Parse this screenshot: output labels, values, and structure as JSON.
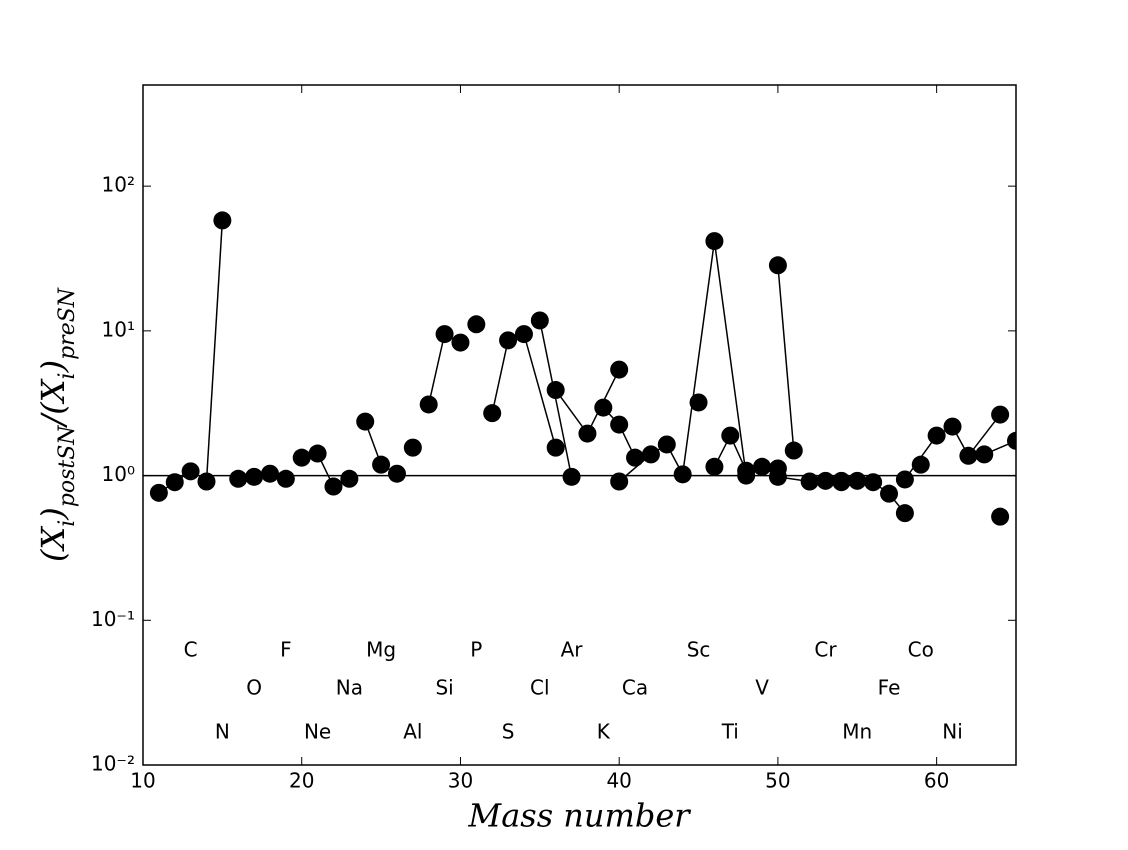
{
  "chart_data": {
    "type": "line",
    "log_y": true,
    "x_label": "Mass number",
    "y_label_parts": [
      "(X",
      "i",
      ")",
      "postSN",
      "/(X",
      "i",
      ")",
      "preSN"
    ],
    "xlim": [
      10,
      65
    ],
    "ylim": [
      0.01,
      500
    ],
    "xticks": [
      10,
      20,
      30,
      40,
      50,
      60
    ],
    "yticks": [
      {
        "value": 0.01,
        "label": "10⁻²"
      },
      {
        "value": 0.1,
        "label": "10⁻¹"
      },
      {
        "value": 1,
        "label": "10⁰"
      },
      {
        "value": 10,
        "label": "10¹"
      },
      {
        "value": 100,
        "label": "10²"
      }
    ],
    "reference_line": 1,
    "color": "#000000",
    "series": [
      {
        "name": "C",
        "label_x": 13,
        "label_y": 0.0615,
        "x": [
          11,
          12,
          13
        ],
        "values": [
          0.76,
          0.9,
          1.07
        ]
      },
      {
        "name": "N",
        "label_x": 15,
        "label_y": 0.0166,
        "x": [
          14,
          15
        ],
        "values": [
          0.91,
          58
        ]
      },
      {
        "name": "O",
        "label_x": 17,
        "label_y": 0.0336,
        "x": [
          16,
          17,
          18
        ],
        "values": [
          0.95,
          0.98,
          1.03
        ]
      },
      {
        "name": "F",
        "label_x": 19,
        "label_y": 0.0615,
        "x": [
          19
        ],
        "values": [
          0.95
        ]
      },
      {
        "name": "Ne",
        "label_x": 21,
        "label_y": 0.0166,
        "x": [
          20,
          21,
          22
        ],
        "values": [
          1.33,
          1.42,
          0.84
        ]
      },
      {
        "name": "Na",
        "label_x": 23,
        "label_y": 0.0336,
        "x": [
          23
        ],
        "values": [
          0.95
        ]
      },
      {
        "name": "Mg",
        "label_x": 25,
        "label_y": 0.0615,
        "x": [
          24,
          25,
          26
        ],
        "values": [
          2.36,
          1.19,
          1.03
        ]
      },
      {
        "name": "Al",
        "label_x": 27,
        "label_y": 0.0166,
        "x": [
          27
        ],
        "values": [
          1.56
        ]
      },
      {
        "name": "Si",
        "label_x": 29,
        "label_y": 0.0336,
        "x": [
          28,
          29,
          30
        ],
        "values": [
          3.1,
          9.5,
          8.3
        ]
      },
      {
        "name": "P",
        "label_x": 31,
        "label_y": 0.0615,
        "x": [
          31
        ],
        "values": [
          11.1
        ]
      },
      {
        "name": "S",
        "label_x": 33,
        "label_y": 0.0166,
        "x": [
          32,
          33,
          34,
          36
        ],
        "values": [
          2.7,
          8.6,
          9.5,
          1.56
        ]
      },
      {
        "name": "Cl",
        "label_x": 35,
        "label_y": 0.0336,
        "x": [
          35,
          37
        ],
        "values": [
          11.8,
          0.98
        ]
      },
      {
        "name": "Ar",
        "label_x": 37,
        "label_y": 0.0615,
        "x": [
          36,
          38,
          40
        ],
        "values": [
          3.9,
          1.95,
          5.4
        ]
      },
      {
        "name": "K",
        "label_x": 39,
        "label_y": 0.0166,
        "x": [
          39,
          40,
          41
        ],
        "values": [
          2.95,
          2.25,
          1.33
        ]
      },
      {
        "name": "Ca",
        "label_x": 41,
        "label_y": 0.0336,
        "x": [
          40,
          42,
          43,
          44,
          46,
          48
        ],
        "values": [
          0.91,
          1.4,
          1.64,
          1.02,
          41.7,
          1.0
        ]
      },
      {
        "name": "Sc",
        "label_x": 45,
        "label_y": 0.0615,
        "x": [
          45
        ],
        "values": [
          3.2
        ]
      },
      {
        "name": "Ti",
        "label_x": 47,
        "label_y": 0.0166,
        "x": [
          46,
          47,
          48,
          49,
          50
        ],
        "values": [
          1.15,
          1.89,
          1.08,
          1.15,
          1.12
        ]
      },
      {
        "name": "V",
        "label_x": 49,
        "label_y": 0.0336,
        "x": [
          50,
          51
        ],
        "values": [
          28.4,
          1.49
        ]
      },
      {
        "name": "Cr",
        "label_x": 53,
        "label_y": 0.0615,
        "x": [
          50,
          52,
          53,
          54
        ],
        "values": [
          0.98,
          0.91,
          0.92,
          0.92
        ]
      },
      {
        "name": "Mn",
        "label_x": 55,
        "label_y": 0.0166,
        "x": [
          55
        ],
        "values": [
          0.92
        ]
      },
      {
        "name": "Fe",
        "label_x": 57,
        "label_y": 0.0336,
        "x": [
          54,
          56,
          57,
          58
        ],
        "values": [
          0.9,
          0.9,
          0.75,
          0.55
        ]
      },
      {
        "name": "Co",
        "label_x": 59,
        "label_y": 0.0615,
        "x": [
          59
        ],
        "values": [
          1.19
        ]
      },
      {
        "name": "Ni",
        "label_x": 61,
        "label_y": 0.0166,
        "x": [
          58,
          60,
          61,
          62,
          64
        ],
        "values": [
          0.94,
          1.89,
          2.18,
          1.37,
          2.64
        ]
      },
      {
        "x": [
          63,
          65
        ],
        "values": [
          1.4,
          1.74
        ]
      },
      {
        "x": [
          64
        ],
        "values": [
          0.52
        ]
      }
    ]
  }
}
